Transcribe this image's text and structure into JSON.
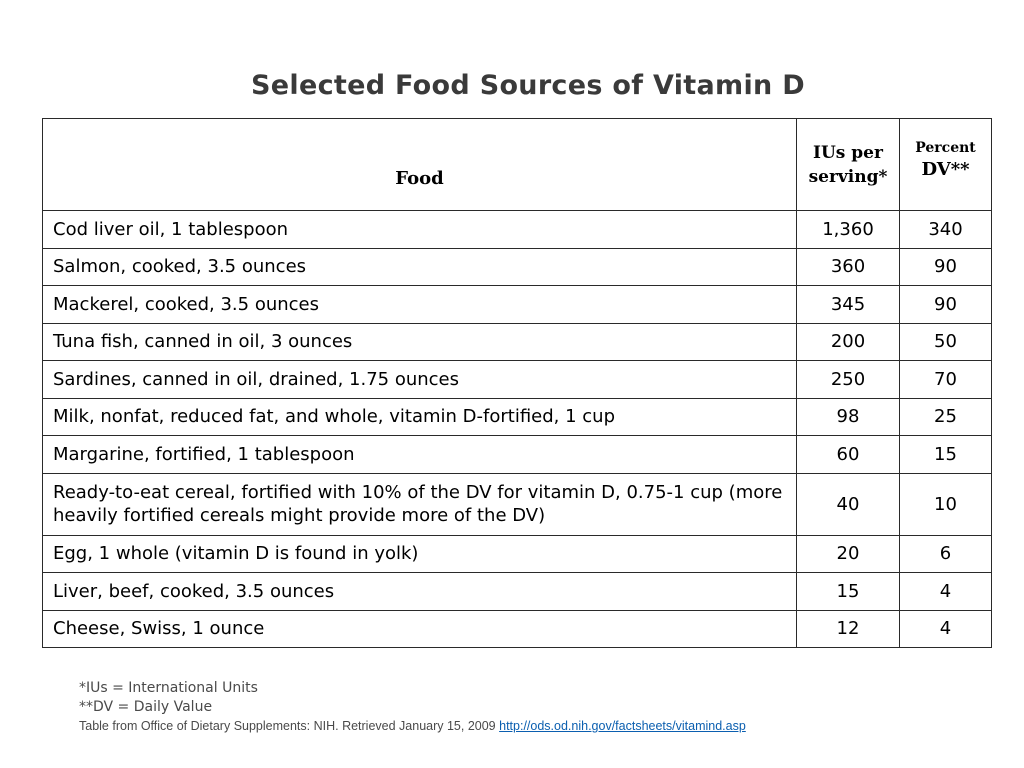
{
  "title": "Selected Food Sources of Vitamin D",
  "table": {
    "headers": {
      "food": "Food",
      "ius": "IUs per serving*",
      "dv_small": "Percent",
      "dv_big": "DV**"
    },
    "rows": [
      {
        "food": "Cod liver oil, 1 tablespoon",
        "ius": "1,360",
        "dv": "340"
      },
      {
        "food": "Salmon, cooked, 3.5 ounces",
        "ius": "360",
        "dv": "90"
      },
      {
        "food": "Mackerel, cooked, 3.5 ounces",
        "ius": "345",
        "dv": "90"
      },
      {
        "food": "Tuna fish, canned in oil, 3 ounces",
        "ius": "200",
        "dv": "50"
      },
      {
        "food": "Sardines, canned in oil, drained, 1.75 ounces",
        "ius": "250",
        "dv": "70"
      },
      {
        "food": "Milk, nonfat, reduced fat, and whole, vitamin D-fortified, 1 cup",
        "ius": "98",
        "dv": "25"
      },
      {
        "food": "Margarine, fortified, 1 tablespoon",
        "ius": "60",
        "dv": "15"
      },
      {
        "food": "Ready-to-eat cereal, fortified with 10% of the DV for vitamin D, 0.75-1 cup (more heavily fortified cereals might provide more of the DV)",
        "ius": "40",
        "dv": "10"
      },
      {
        "food": "Egg, 1 whole (vitamin D is found in yolk)",
        "ius": "20",
        "dv": "6"
      },
      {
        "food": "Liver, beef, cooked, 3.5 ounces",
        "ius": "15",
        "dv": "4"
      },
      {
        "food": "Cheese, Swiss, 1 ounce",
        "ius": "12",
        "dv": "4"
      }
    ]
  },
  "notes": {
    "ius_note": "*IUs = International Units",
    "dv_note": "**DV = Daily Value",
    "source_text": "Table from Office of Dietary Supplements:  NIH.  Retrieved January 15, 2009 ",
    "source_link": "http://ods.od.nih.gov/factsheets/vitamind.asp"
  },
  "colors": {
    "title": "#3a3a3a",
    "link": "#0b5fb0",
    "border": "#2a2a2a"
  }
}
